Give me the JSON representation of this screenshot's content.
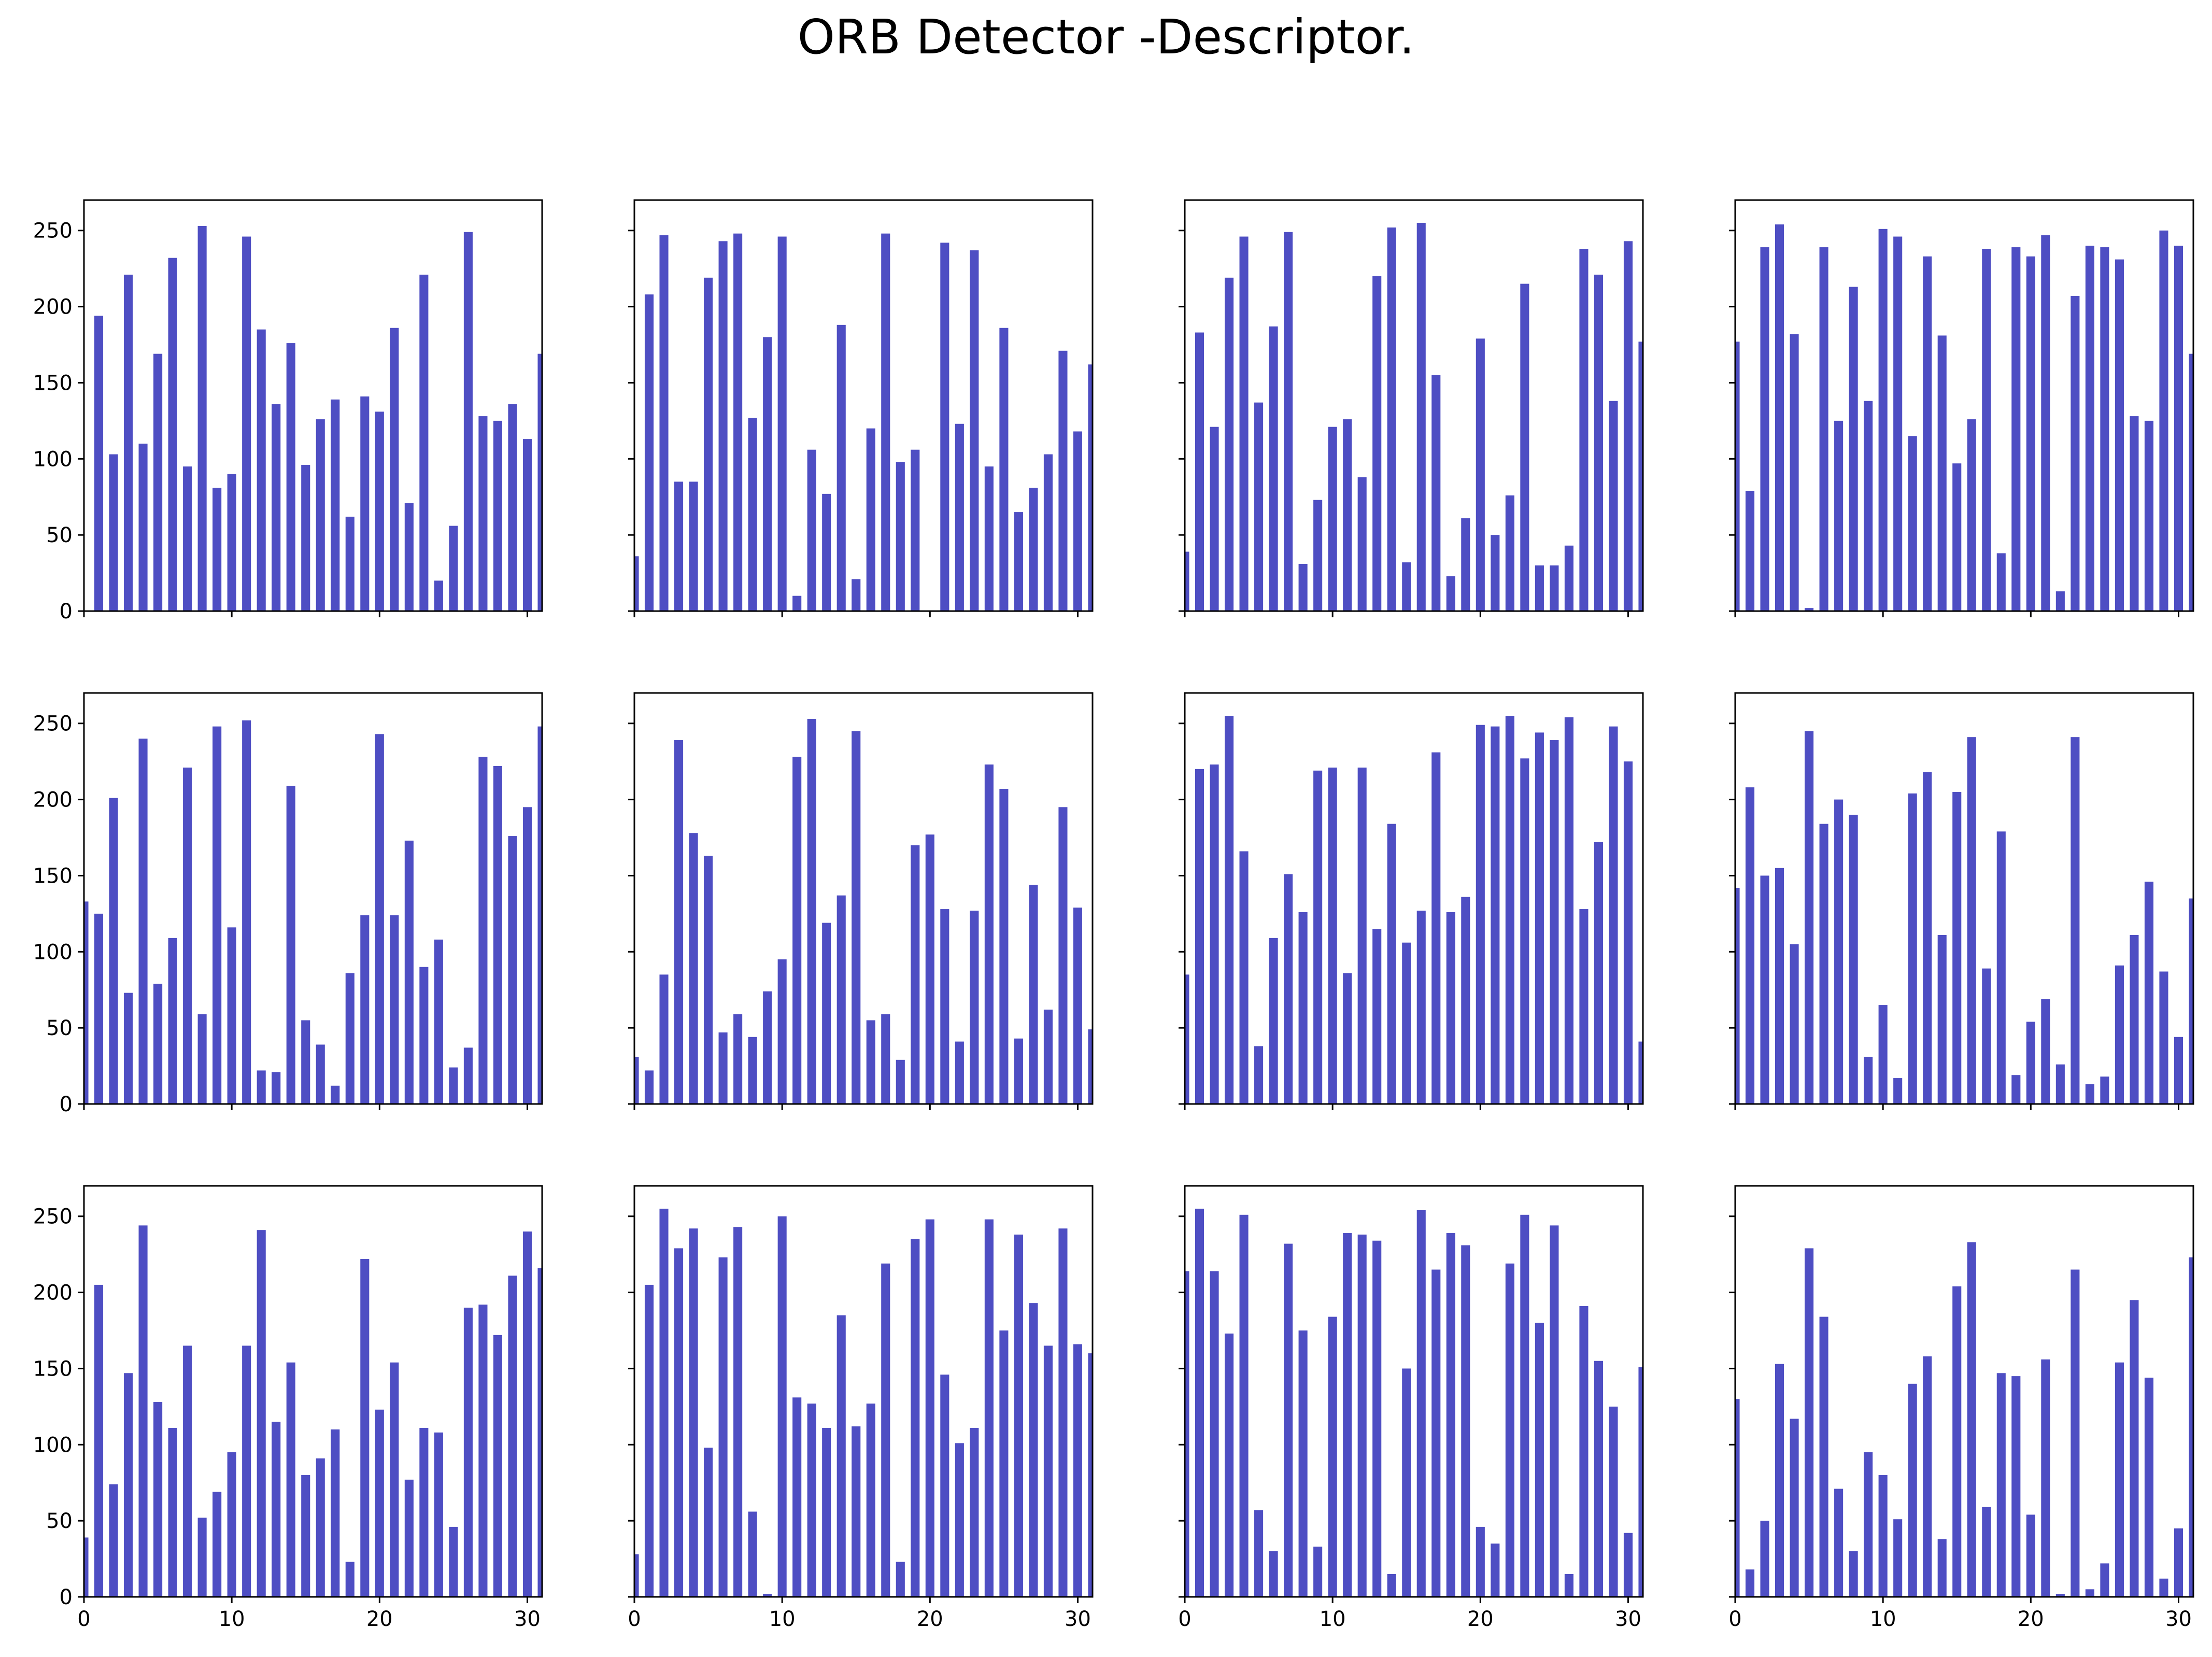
{
  "title": "ORB Detector -Descriptor.",
  "colors": {
    "bar": "#4e4ec3",
    "axis": "#000000"
  },
  "chart_data": [
    {
      "type": "bar",
      "xlim": [
        0,
        31
      ],
      "ylim": [
        0,
        270
      ],
      "xticks": [
        "0",
        "10",
        "20",
        "30"
      ],
      "yticks": [
        "0",
        "50",
        "100",
        "150",
        "200",
        "250"
      ],
      "values": [
        0,
        194,
        103,
        221,
        110,
        169,
        232,
        95,
        253,
        81,
        90,
        246,
        185,
        136,
        176,
        96,
        126,
        139,
        62,
        141,
        131,
        186,
        71,
        221,
        20,
        56,
        249,
        128,
        125,
        136,
        113,
        169
      ]
    },
    {
      "type": "bar",
      "xlim": [
        0,
        31
      ],
      "ylim": [
        0,
        270
      ],
      "xticks": [
        "0",
        "10",
        "20",
        "30"
      ],
      "yticks": [
        "0",
        "50",
        "100",
        "150",
        "200",
        "250"
      ],
      "values": [
        36,
        208,
        247,
        85,
        85,
        219,
        243,
        248,
        127,
        180,
        246,
        10,
        106,
        77,
        188,
        21,
        120,
        248,
        98,
        106,
        0,
        242,
        123,
        237,
        95,
        186,
        65,
        81,
        103,
        171,
        118,
        162
      ]
    },
    {
      "type": "bar",
      "xlim": [
        0,
        31
      ],
      "ylim": [
        0,
        270
      ],
      "xticks": [
        "0",
        "10",
        "20",
        "30"
      ],
      "yticks": [
        "0",
        "50",
        "100",
        "150",
        "200",
        "250"
      ],
      "values": [
        39,
        183,
        121,
        219,
        246,
        137,
        187,
        249,
        31,
        73,
        121,
        126,
        88,
        220,
        252,
        32,
        255,
        155,
        23,
        61,
        179,
        50,
        76,
        215,
        30,
        30,
        43,
        238,
        221,
        138,
        243,
        177
      ]
    },
    {
      "type": "bar",
      "xlim": [
        0,
        31
      ],
      "ylim": [
        0,
        270
      ],
      "xticks": [
        "0",
        "10",
        "20",
        "30"
      ],
      "yticks": [
        "0",
        "50",
        "100",
        "150",
        "200",
        "250"
      ],
      "values": [
        177,
        79,
        239,
        254,
        182,
        2,
        239,
        125,
        213,
        138,
        251,
        246,
        115,
        233,
        181,
        97,
        126,
        238,
        38,
        239,
        233,
        247,
        13,
        207,
        240,
        239,
        231,
        128,
        125,
        250,
        240,
        169
      ]
    },
    {
      "type": "bar",
      "xlim": [
        0,
        31
      ],
      "ylim": [
        0,
        270
      ],
      "xticks": [
        "0",
        "10",
        "20",
        "30"
      ],
      "yticks": [
        "0",
        "50",
        "100",
        "150",
        "200",
        "250"
      ],
      "values": [
        133,
        125,
        201,
        73,
        240,
        79,
        109,
        221,
        59,
        248,
        116,
        252,
        22,
        21,
        209,
        55,
        39,
        12,
        86,
        124,
        243,
        124,
        173,
        90,
        108,
        24,
        37,
        228,
        222,
        176,
        195,
        248
      ]
    },
    {
      "type": "bar",
      "xlim": [
        0,
        31
      ],
      "ylim": [
        0,
        270
      ],
      "xticks": [
        "0",
        "10",
        "20",
        "30"
      ],
      "yticks": [
        "0",
        "50",
        "100",
        "150",
        "200",
        "250"
      ],
      "values": [
        31,
        22,
        85,
        239,
        178,
        163,
        47,
        59,
        44,
        74,
        95,
        228,
        253,
        119,
        137,
        245,
        55,
        59,
        29,
        170,
        177,
        128,
        41,
        127,
        223,
        207,
        43,
        144,
        62,
        195,
        129,
        49
      ]
    },
    {
      "type": "bar",
      "xlim": [
        0,
        31
      ],
      "ylim": [
        0,
        270
      ],
      "xticks": [
        "0",
        "10",
        "20",
        "30"
      ],
      "yticks": [
        "0",
        "50",
        "100",
        "150",
        "200",
        "250"
      ],
      "values": [
        85,
        220,
        223,
        255,
        166,
        38,
        109,
        151,
        126,
        219,
        221,
        86,
        221,
        115,
        184,
        106,
        127,
        231,
        126,
        136,
        249,
        248,
        255,
        227,
        244,
        239,
        254,
        128,
        172,
        248,
        225,
        41
      ]
    },
    {
      "type": "bar",
      "xlim": [
        0,
        31
      ],
      "ylim": [
        0,
        270
      ],
      "xticks": [
        "0",
        "10",
        "20",
        "30"
      ],
      "yticks": [
        "0",
        "50",
        "100",
        "150",
        "200",
        "250"
      ],
      "values": [
        142,
        208,
        150,
        155,
        105,
        245,
        184,
        200,
        190,
        31,
        65,
        17,
        204,
        218,
        111,
        205,
        241,
        89,
        179,
        19,
        54,
        69,
        26,
        241,
        13,
        18,
        91,
        111,
        146,
        87,
        44,
        135
      ]
    },
    {
      "type": "bar",
      "xlim": [
        0,
        31
      ],
      "ylim": [
        0,
        270
      ],
      "xticks": [
        "0",
        "10",
        "20",
        "30"
      ],
      "yticks": [
        "0",
        "50",
        "100",
        "150",
        "200",
        "250"
      ],
      "values": [
        39,
        205,
        74,
        147,
        244,
        128,
        111,
        165,
        52,
        69,
        95,
        165,
        241,
        115,
        154,
        80,
        91,
        110,
        23,
        222,
        123,
        154,
        77,
        111,
        108,
        46,
        190,
        192,
        172,
        211,
        240,
        216
      ]
    },
    {
      "type": "bar",
      "xlim": [
        0,
        31
      ],
      "ylim": [
        0,
        270
      ],
      "xticks": [
        "0",
        "10",
        "20",
        "30"
      ],
      "yticks": [
        "0",
        "50",
        "100",
        "150",
        "200",
        "250"
      ],
      "values": [
        28,
        205,
        255,
        229,
        242,
        98,
        223,
        243,
        56,
        2,
        250,
        131,
        127,
        111,
        185,
        112,
        127,
        219,
        23,
        235,
        248,
        146,
        101,
        111,
        248,
        175,
        238,
        193,
        165,
        242,
        166,
        160
      ]
    },
    {
      "type": "bar",
      "xlim": [
        0,
        31
      ],
      "ylim": [
        0,
        270
      ],
      "xticks": [
        "0",
        "10",
        "20",
        "30"
      ],
      "yticks": [
        "0",
        "50",
        "100",
        "150",
        "200",
        "250"
      ],
      "values": [
        214,
        255,
        214,
        173,
        251,
        57,
        30,
        232,
        175,
        33,
        184,
        239,
        238,
        234,
        15,
        150,
        254,
        215,
        239,
        231,
        46,
        35,
        219,
        251,
        180,
        244,
        15,
        191,
        155,
        125,
        42,
        151
      ]
    },
    {
      "type": "bar",
      "xlim": [
        0,
        31
      ],
      "ylim": [
        0,
        270
      ],
      "xticks": [
        "0",
        "10",
        "20",
        "30"
      ],
      "yticks": [
        "0",
        "50",
        "100",
        "150",
        "200",
        "250"
      ],
      "values": [
        130,
        18,
        50,
        153,
        117,
        229,
        184,
        71,
        30,
        95,
        80,
        51,
        140,
        158,
        38,
        204,
        233,
        59,
        147,
        145,
        54,
        156,
        2,
        215,
        5,
        22,
        154,
        195,
        144,
        12,
        45,
        223
      ]
    }
  ]
}
